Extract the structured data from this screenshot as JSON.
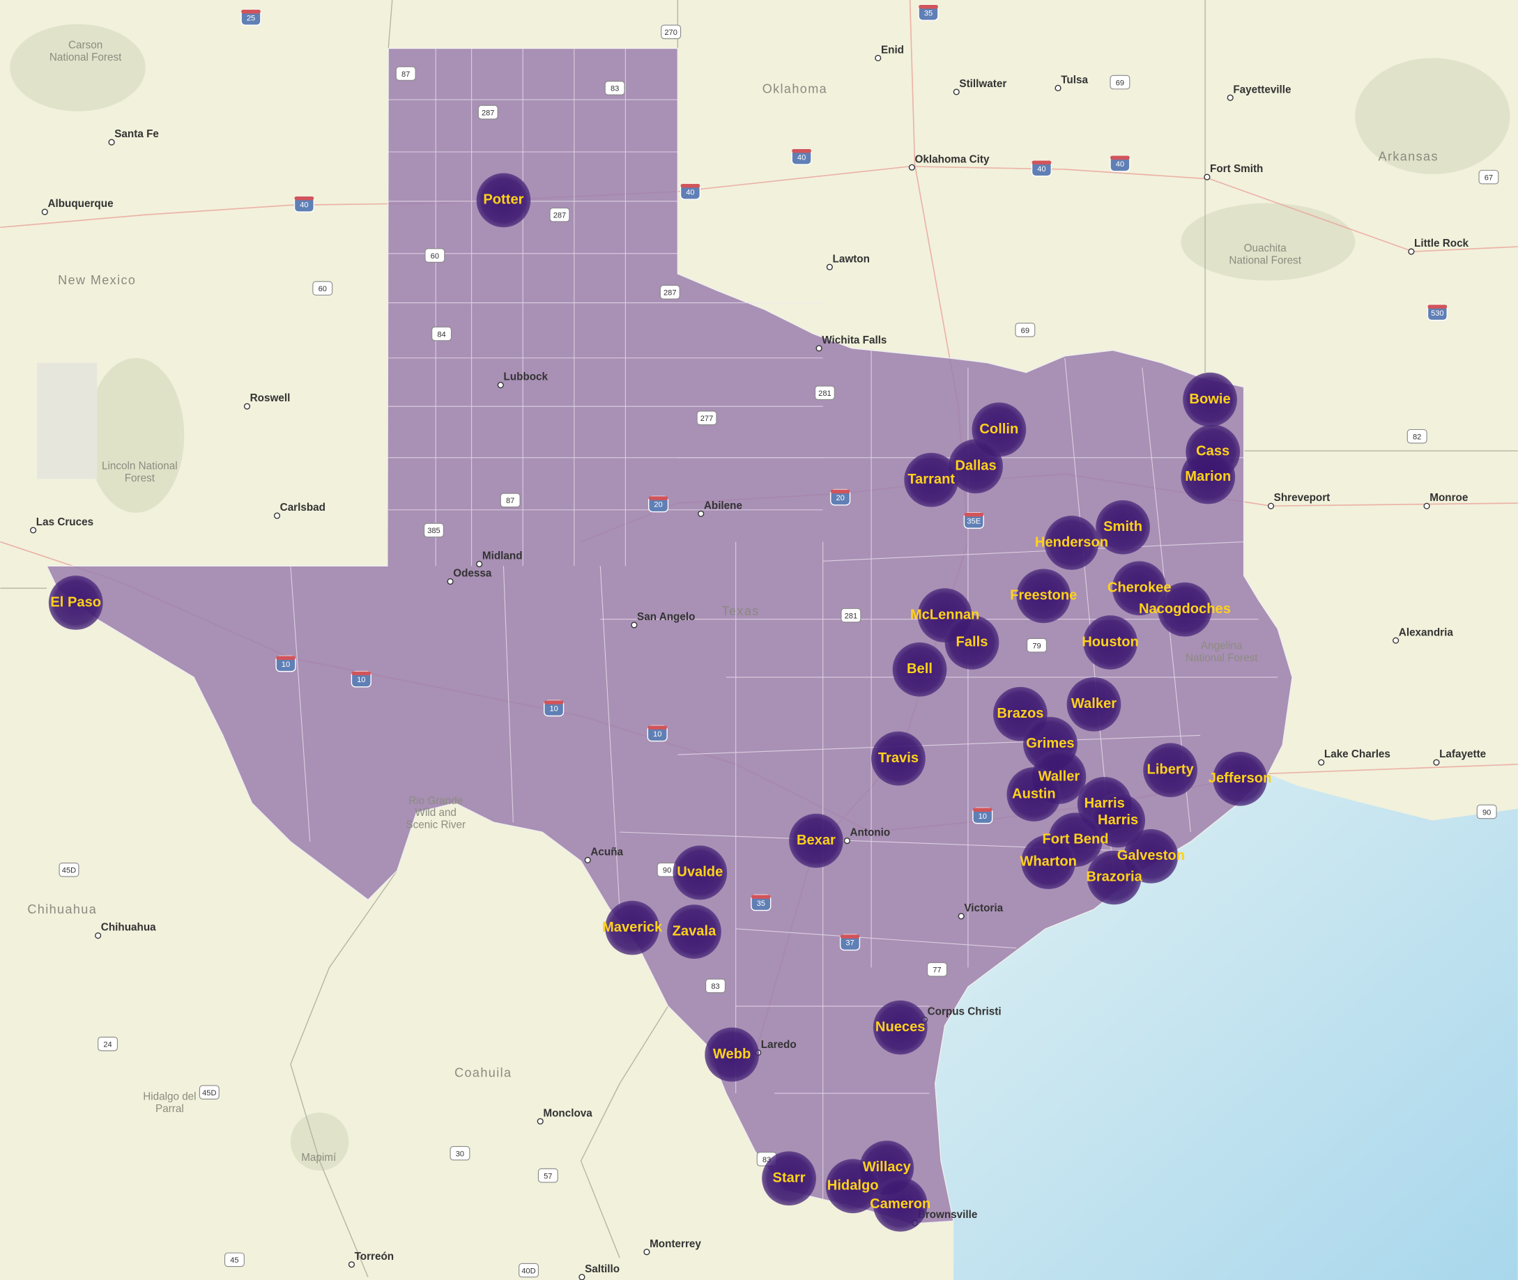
{
  "map": {
    "states": [
      "Oklahoma",
      "New Mexico",
      "Arkansas",
      "Texas",
      "Chihuahua",
      "Coahuila"
    ],
    "cities": [
      "Santa Fe",
      "Albuquerque",
      "Roswell",
      "Carlsbad",
      "Las Cruces",
      "Tulsa",
      "Enid",
      "Stillwater",
      "Fayetteville",
      "Oklahoma City",
      "Fort Smith",
      "Little Rock",
      "Lawton",
      "Wichita Falls",
      "Lubbock",
      "Abilene",
      "Midland",
      "Odessa",
      "San Angelo",
      "Shreveport",
      "Monroe",
      "Alexandria",
      "Lake Charles",
      "Lafayette",
      "Acuña",
      "Laredo",
      "Corpus Christi",
      "Victoria",
      "Brownsville",
      "Monterrey",
      "Saltillo",
      "Torreón",
      "Monclova",
      "Chihuahua",
      "Antonio"
    ],
    "multi_line_places": [
      [
        "Carson",
        "National Forest"
      ],
      [
        "Lincoln National",
        "Forest"
      ],
      [
        "Ouachita",
        "National Forest"
      ],
      [
        "Rio Grande",
        "Wild and",
        "Scenic River"
      ],
      [
        "Angelina",
        "National Forest"
      ],
      [
        "Hidalgo del",
        "Parral"
      ],
      [
        "Mapimí"
      ]
    ],
    "routes": [
      "25",
      "35",
      "270",
      "87",
      "83",
      "287",
      "287",
      "40",
      "40",
      "40",
      "40",
      "40",
      "69",
      "67",
      "60",
      "60",
      "287",
      "84",
      "277",
      "281",
      "69",
      "530",
      "82",
      "87",
      "385",
      "20",
      "20",
      "35E",
      "10",
      "10",
      "10",
      "10",
      "10",
      "79",
      "281",
      "90",
      "35",
      "37",
      "77",
      "83",
      "90",
      "45D",
      "24",
      "45D",
      "30",
      "57",
      "45",
      "40D",
      "83"
    ],
    "counties": [
      "Potter",
      "El Paso",
      "Bowie",
      "Collin",
      "Cass",
      "Dallas",
      "Tarrant",
      "Marion",
      "Smith",
      "Henderson",
      "Cherokee",
      "Freestone",
      "Nacogdoches",
      "McLennan",
      "Falls",
      "Houston",
      "Bell",
      "Walker",
      "Brazos",
      "Grimes",
      "Travis",
      "Liberty",
      "Jefferson",
      "Waller",
      "Austin",
      "Harris",
      "Harris",
      "Fort Bend",
      "Bexar",
      "Galveston",
      "Wharton",
      "Brazoria",
      "Uvalde",
      "Maverick",
      "Zavala",
      "Nueces",
      "Webb",
      "Willacy",
      "Starr",
      "Hidalgo",
      "Cameron"
    ]
  }
}
